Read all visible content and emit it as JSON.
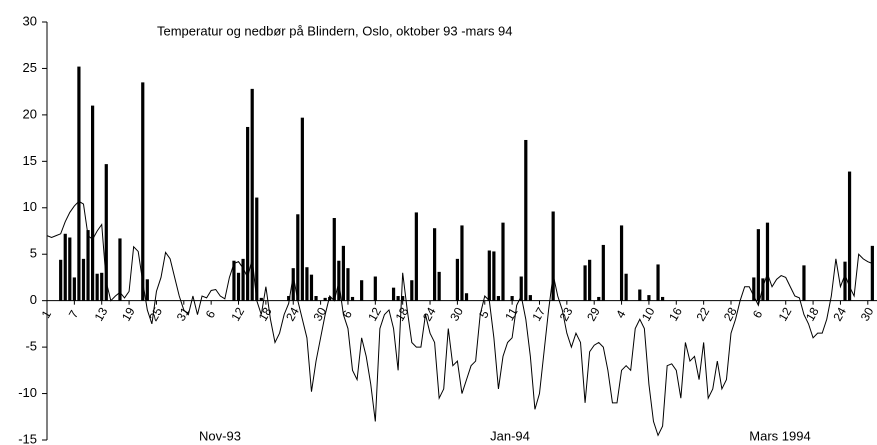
{
  "chart_data": {
    "type": "bar",
    "title": "Temperatur og nedbør på Blindern, Oslo, oktober 93 -mars 94",
    "annotations": [
      "Nov-93",
      "Jan-94",
      "Mars 1994"
    ],
    "categories": [
      "1",
      null,
      null,
      null,
      null,
      null,
      "7",
      null,
      null,
      null,
      null,
      null,
      "13",
      null,
      null,
      null,
      null,
      null,
      "19",
      null,
      null,
      null,
      null,
      null,
      "25",
      null,
      null,
      null,
      null,
      null,
      "31",
      null,
      null,
      null,
      null,
      null,
      "6",
      null,
      null,
      null,
      null,
      null,
      "12",
      null,
      null,
      null,
      null,
      null,
      "18",
      null,
      null,
      null,
      null,
      null,
      "24",
      null,
      null,
      null,
      null,
      null,
      "30",
      null,
      null,
      null,
      null,
      null,
      "6",
      null,
      null,
      null,
      null,
      null,
      "12",
      null,
      null,
      null,
      null,
      null,
      "18",
      null,
      null,
      null,
      null,
      null,
      "24",
      null,
      null,
      null,
      null,
      null,
      "30",
      null,
      null,
      null,
      null,
      null,
      "5",
      null,
      null,
      null,
      null,
      null,
      "11",
      null,
      null,
      null,
      null,
      null,
      "17",
      null,
      null,
      null,
      null,
      null,
      "23",
      null,
      null,
      null,
      null,
      null,
      "29",
      null,
      null,
      null,
      null,
      null,
      "4",
      null,
      null,
      null,
      null,
      null,
      "10",
      null,
      null,
      null,
      null,
      null,
      "16",
      null,
      null,
      null,
      null,
      null,
      "22",
      null,
      null,
      null,
      null,
      null,
      "28",
      null,
      null,
      null,
      null,
      null,
      "6",
      null,
      null,
      null,
      null,
      null,
      "12",
      null,
      null,
      null,
      null,
      null,
      "18",
      null,
      null,
      null,
      null,
      null,
      "24",
      null,
      null,
      null,
      null,
      null,
      "30",
      null
    ],
    "series": [
      {
        "type": "bar",
        "color": "#000000",
        "values": [
          0,
          0,
          0,
          4.4,
          7.2,
          6.8,
          2.5,
          25.2,
          4.5,
          7.6,
          21,
          2.9,
          3,
          14.7,
          0,
          0,
          6.7,
          0,
          0,
          0,
          0,
          23.5,
          2.3,
          0,
          0,
          0,
          0,
          0,
          0,
          0,
          0,
          0,
          0,
          0,
          0,
          0,
          0,
          0,
          0,
          0,
          0,
          4.3,
          3,
          4.5,
          18.7,
          22.8,
          11.1,
          0.3,
          0,
          0,
          0,
          0,
          0,
          0.5,
          3.5,
          9.3,
          19.7,
          3.6,
          2.8,
          0.5,
          0,
          0.3,
          0.4,
          8.9,
          4.3,
          5.9,
          3.5,
          0.4,
          0,
          2.2,
          0,
          0,
          2.6,
          0,
          0,
          0,
          1.4,
          0.5,
          0.5,
          0,
          2.2,
          9.5,
          0,
          0,
          0,
          7.8,
          3.1,
          0,
          0,
          0,
          4.5,
          8.1,
          0.8,
          0,
          0,
          0,
          0,
          5.4,
          5.3,
          0.5,
          8.4,
          0,
          0.5,
          0,
          2.6,
          17.3,
          0.6,
          0,
          0,
          0,
          0,
          9.6,
          0,
          0,
          0,
          0,
          0,
          0,
          3.8,
          4.4,
          0,
          0.4,
          6,
          0,
          0,
          0,
          8.1,
          2.9,
          0,
          0,
          1.2,
          0,
          0.6,
          0,
          3.9,
          0.4,
          0,
          0,
          0,
          0,
          0,
          0,
          0,
          0,
          0,
          0,
          0,
          0,
          0,
          0,
          0,
          0,
          0,
          0,
          0,
          2.5,
          7.7,
          2.4,
          8.4,
          0,
          0,
          0,
          0,
          0,
          0,
          0,
          3.8,
          0,
          0,
          0,
          0,
          0,
          0,
          0,
          0,
          4.2,
          13.9,
          0,
          0,
          0,
          0,
          5.9
        ]
      },
      {
        "type": "line",
        "color": "#000000",
        "values": [
          7,
          6.8,
          7,
          7.2,
          8.5,
          9.5,
          10.2,
          10.7,
          10.4,
          7,
          6.6,
          7.5,
          8.2,
          2,
          0,
          0.5,
          0.9,
          0.3,
          1,
          5.8,
          5.3,
          2,
          -1,
          -2.5,
          1,
          2.5,
          5.2,
          4.5,
          2.5,
          0.5,
          -1,
          -1.5,
          0.5,
          -1.5,
          0.5,
          0.3,
          1.1,
          1.2,
          0.5,
          0.2,
          2.5,
          4,
          4.2,
          3.5,
          2.5,
          4.5,
          0,
          -1.5,
          1.5,
          -2,
          -4.5,
          -3.5,
          -1.5,
          -0.3,
          2.7,
          0,
          -2,
          -4,
          -9.8,
          -6.5,
          -4,
          -1.5,
          0.5,
          0,
          2,
          -1.5,
          -3,
          -7.5,
          -8.5,
          -4,
          -6,
          -9,
          -13,
          -3,
          -1.5,
          -1,
          -3,
          -7.5,
          3,
          -1,
          -4.5,
          -5,
          -5,
          -1.5,
          -3.5,
          -4.5,
          -10.5,
          -9.5,
          -3,
          -7,
          -6.5,
          -10,
          -8.5,
          -7,
          -6.5,
          -1.5,
          0.5,
          0,
          -4,
          -9.5,
          -6,
          -4.5,
          -4,
          -0.5,
          0.5,
          -2,
          -6,
          -11.7,
          -10,
          -5.5,
          -1,
          2.8,
          0.5,
          -1,
          -3.5,
          -5,
          -3.5,
          -4.5,
          -11,
          -5.5,
          -4.8,
          -4.5,
          -5,
          -7.5,
          -11,
          -11,
          -7.5,
          -7,
          -7.5,
          -3,
          -2,
          -3,
          -9,
          -13,
          -14.5,
          -13.5,
          -7,
          -6.8,
          -7.5,
          -10.5,
          -4.5,
          -6.5,
          -6,
          -8.5,
          -4.5,
          -10.5,
          -9.5,
          -6.5,
          -9.5,
          -8.5,
          -3.5,
          -2,
          0,
          1.5,
          1.5,
          0.5,
          -0.5,
          1.5,
          2.9,
          1.5,
          2.3,
          2.7,
          2.5,
          1.5,
          0.5,
          0.3,
          -1.5,
          -2.5,
          -4,
          -3.5,
          -3.5,
          -2,
          0.5,
          4.5,
          1.5,
          2.8,
          1.5,
          0.5,
          5,
          4.5,
          4.2,
          4
        ]
      }
    ],
    "ylim": [
      -15,
      30
    ],
    "yticks": [
      -15,
      -10,
      -5,
      0,
      5,
      10,
      15,
      20,
      25,
      30
    ]
  }
}
